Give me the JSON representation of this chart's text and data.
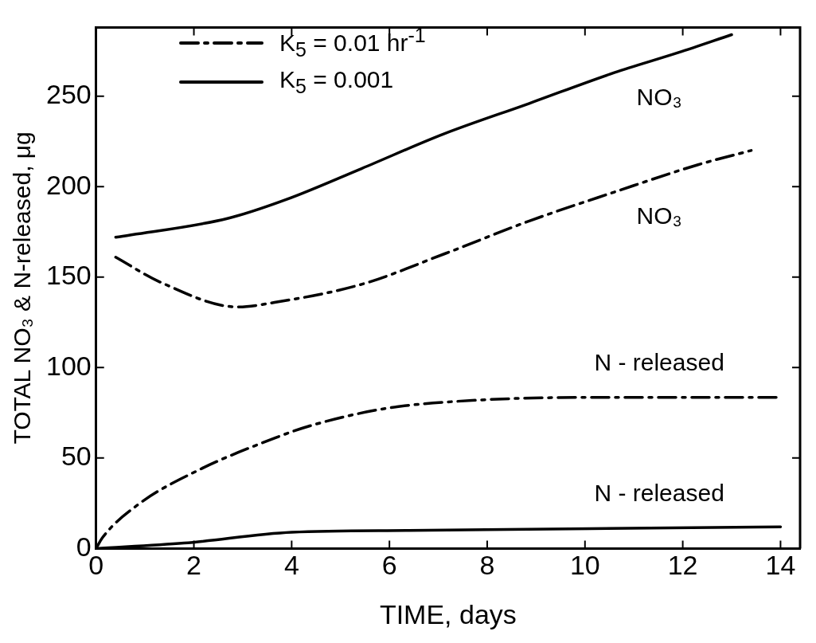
{
  "chart_data": {
    "type": "line",
    "xlabel": "TIME, days",
    "ylabel": "TOTAL NO₃ & N-released, μg",
    "xlim": [
      0,
      14.4
    ],
    "xticks": [
      0,
      2,
      4,
      6,
      8,
      10,
      12,
      14
    ],
    "ylim": [
      0,
      288
    ],
    "yticks": [
      0,
      50,
      100,
      150,
      200,
      250
    ],
    "grid": false,
    "legend": "top left",
    "marker": "none",
    "series": [
      {
        "name": "K$_{5}$ = 0.01 hr$^{-1}$",
        "color": "#000000",
        "line_style": "dashed",
        "x": [
          0.4,
          1.33,
          2.9,
          3.65,
          5.43,
          7.14,
          8.86,
          10.6,
          12.3,
          13.4
        ],
        "values": [
          161,
          147,
          133.5,
          136,
          146,
          163,
          181,
          197,
          212,
          220
        ]
      },
      {
        "name": "K$_{5}$ = 0.001",
        "color": "#000000",
        "line_style": "solid",
        "x": [
          0.4,
          2.7,
          3.9,
          5.43,
          7.1,
          8.86,
          10.6,
          11.9,
          13.0
        ],
        "values": [
          172,
          182.5,
          193,
          210,
          229,
          246,
          263,
          274,
          284
        ]
      },
      {
        "color": "#000000",
        "line_style": "dashed",
        "x": [
          0,
          0.13,
          0.87,
          2.07,
          3.65,
          4.4,
          5.95,
          7.8,
          10.1,
          14.0
        ],
        "values": [
          0,
          6,
          24.5,
          43,
          61,
          68,
          77.5,
          82,
          83.5,
          83.5
        ]
      },
      {
        "color": "#000000",
        "line_style": "solid",
        "x": [
          0,
          1.8,
          4.0,
          6.4,
          10.1,
          14.0
        ],
        "values": [
          0,
          3,
          9,
          10,
          11,
          12
        ]
      }
    ],
    "annotations": [
      "NO₃",
      "NO₃",
      "N - released",
      "N - released"
    ]
  }
}
